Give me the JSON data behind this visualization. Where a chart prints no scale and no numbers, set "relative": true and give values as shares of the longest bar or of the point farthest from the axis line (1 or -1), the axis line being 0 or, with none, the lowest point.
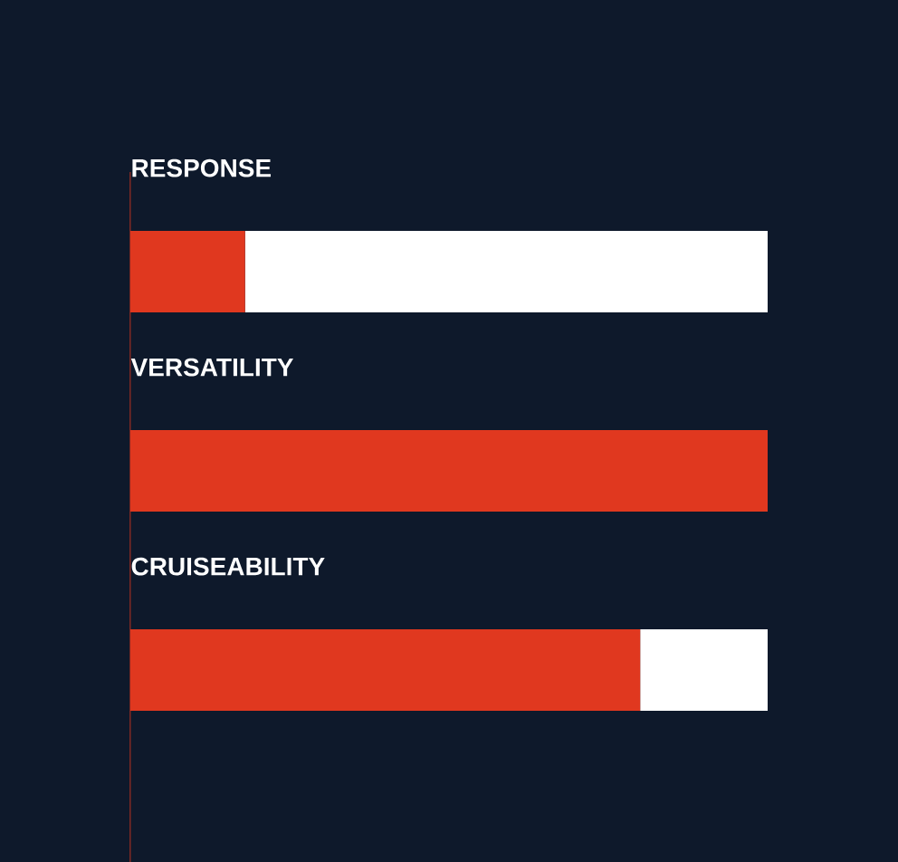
{
  "chart_data": {
    "type": "bar",
    "orientation": "horizontal",
    "stacked": true,
    "relative": true,
    "categories": [
      "RESPONSE",
      "VERSATILITY",
      "CRUISEABILITY"
    ],
    "series": [
      {
        "color": "#e0381f",
        "values": [
          0.18,
          1,
          0.8
        ]
      },
      {
        "color": "#ffffff",
        "values": [
          0.82,
          0,
          0.2
        ]
      }
    ]
  }
}
